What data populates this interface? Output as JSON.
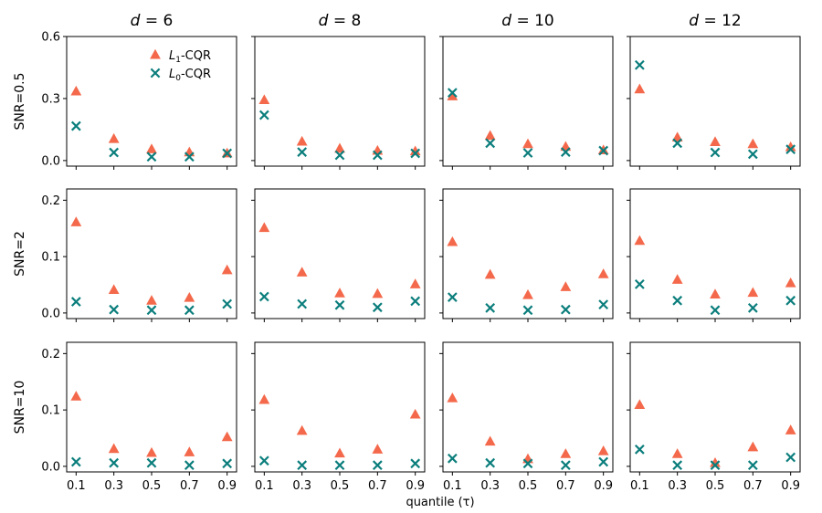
{
  "chart_data": {
    "type": "scatter",
    "xlabel": "quantile (τ)",
    "x": [
      0.1,
      0.3,
      0.5,
      0.7,
      0.9
    ],
    "x_tick_labels": [
      "0.1",
      "0.3",
      "0.5",
      "0.7",
      "0.9"
    ],
    "columns": [
      {
        "title_var": "d",
        "title_eq": " = ",
        "title_val": "6"
      },
      {
        "title_var": "d",
        "title_eq": " = ",
        "title_val": "8"
      },
      {
        "title_var": "d",
        "title_eq": " = ",
        "title_val": "10"
      },
      {
        "title_var": "d",
        "title_eq": " = ",
        "title_val": "12"
      }
    ],
    "rows": [
      {
        "label": "SNR=0.5",
        "ylim": [
          0,
          0.6
        ],
        "y_ticks": [
          "0.0",
          "0.3",
          "0.6"
        ],
        "y_tick_values": [
          0,
          0.3,
          0.6
        ]
      },
      {
        "label": "SNR=2",
        "ylim": [
          0,
          0.22
        ],
        "y_ticks": [
          "0.0",
          "0.1",
          "0.2"
        ],
        "y_tick_values": [
          0,
          0.1,
          0.2
        ]
      },
      {
        "label": "SNR=10",
        "ylim": [
          0,
          0.22
        ],
        "y_ticks": [
          "0.0",
          "0.1",
          "0.2"
        ],
        "y_tick_values": [
          0,
          0.1,
          0.2
        ]
      }
    ],
    "legend": {
      "placement": "top-right of first panel",
      "entries": [
        {
          "main": "L",
          "sub": "1",
          "suffix": "-CQR",
          "marker": "triangle",
          "color": "#f4694b"
        },
        {
          "main": "L",
          "sub": "0",
          "suffix": "-CQR",
          "marker": "x",
          "color": "#0b7e7c"
        }
      ]
    },
    "series_colors": {
      "L1": "#f4694b",
      "L0": "#0b7e7c"
    },
    "panels": [
      [
        {
          "L1": [
            0.335,
            0.105,
            0.055,
            0.04,
            0.035
          ],
          "L0": [
            0.167,
            0.039,
            0.018,
            0.018,
            0.035
          ]
        },
        {
          "L1": [
            0.293,
            0.092,
            0.058,
            0.048,
            0.045
          ],
          "L0": [
            0.22,
            0.041,
            0.026,
            0.026,
            0.035
          ]
        },
        {
          "L1": [
            0.311,
            0.12,
            0.08,
            0.067,
            0.05
          ],
          "L0": [
            0.328,
            0.084,
            0.037,
            0.041,
            0.048
          ]
        },
        {
          "L1": [
            0.345,
            0.112,
            0.09,
            0.08,
            0.065
          ],
          "L0": [
            0.462,
            0.084,
            0.039,
            0.031,
            0.054
          ]
        }
      ],
      [
        {
          "L1": [
            0.161,
            0.041,
            0.022,
            0.027,
            0.076
          ],
          "L0": [
            0.02,
            0.006,
            0.005,
            0.005,
            0.016
          ]
        },
        {
          "L1": [
            0.151,
            0.072,
            0.035,
            0.034,
            0.051
          ],
          "L0": [
            0.029,
            0.016,
            0.014,
            0.01,
            0.021
          ]
        },
        {
          "L1": [
            0.126,
            0.068,
            0.032,
            0.046,
            0.069
          ],
          "L0": [
            0.028,
            0.009,
            0.005,
            0.006,
            0.015
          ]
        },
        {
          "L1": [
            0.128,
            0.059,
            0.033,
            0.036,
            0.053
          ],
          "L0": [
            0.051,
            0.022,
            0.005,
            0.009,
            0.022
          ]
        }
      ],
      [
        {
          "L1": [
            0.124,
            0.031,
            0.024,
            0.025,
            0.052
          ],
          "L0": [
            0.008,
            0.006,
            0.006,
            0.002,
            0.005
          ]
        },
        {
          "L1": [
            0.118,
            0.063,
            0.023,
            0.03,
            0.092
          ],
          "L0": [
            0.01,
            0.002,
            0.002,
            0.002,
            0.005
          ]
        },
        {
          "L1": [
            0.121,
            0.044,
            0.013,
            0.022,
            0.027
          ],
          "L0": [
            0.014,
            0.006,
            0.005,
            0.002,
            0.008
          ]
        },
        {
          "L1": [
            0.109,
            0.022,
            0.006,
            0.034,
            0.064
          ],
          "L0": [
            0.03,
            0.002,
            0.002,
            0.002,
            0.016
          ]
        }
      ]
    ]
  }
}
